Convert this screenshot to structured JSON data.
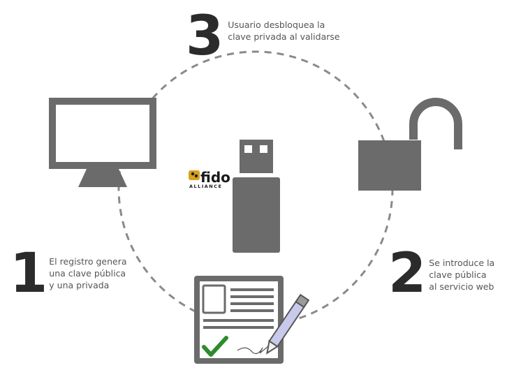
{
  "steps": {
    "one": {
      "number": "1",
      "lines": [
        "El registro genera",
        "una clave pública",
        "y una privada"
      ]
    },
    "two": {
      "number": "2",
      "lines": [
        "Se introduce la",
        "clave pública",
        "al servicio web"
      ]
    },
    "three": {
      "number": "3",
      "lines": [
        "Usuario desbloquea la",
        "clave privada al validarse"
      ]
    }
  },
  "logo": {
    "word": "fido",
    "sub": "ALLIANCE"
  },
  "colors": {
    "icon": "#6b6b6b",
    "dash": "#8a8a8a",
    "check": "#2e8b2e",
    "logo_badge": "#d9a11c",
    "number": "#2b2b2b"
  },
  "icons": [
    "monitor-icon",
    "unlocked-padlock-icon",
    "usb-security-key-icon",
    "signed-document-icon",
    "pencil-icon",
    "checkmark-icon"
  ]
}
